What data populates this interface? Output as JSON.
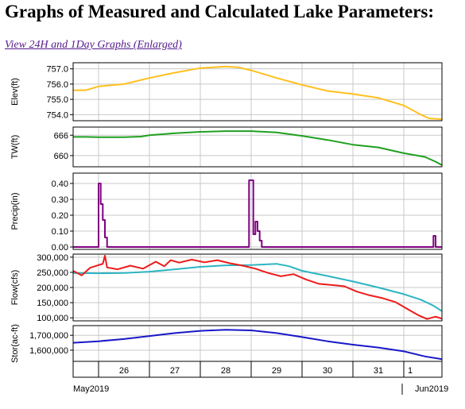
{
  "page": {
    "title": "Graphs of Measured and Calculated Lake Parameters:",
    "link_text": "View 24H and 1Day Graphs (Enlarged)"
  },
  "x_axis": {
    "start": "2019-05-25 12:00",
    "end": "2019-06-01 18:00",
    "day_ticks": [
      "2019-05-26",
      "2019-05-27",
      "2019-05-28",
      "2019-05-29",
      "2019-05-30",
      "2019-05-31",
      "2019-06-01"
    ],
    "day_labels": [
      "26",
      "27",
      "28",
      "29",
      "30",
      "31",
      "1"
    ],
    "month_labels": [
      "May2019",
      "Jun2019"
    ]
  },
  "colors": {
    "elev": "#ffc01e",
    "tw": "#1fa01f",
    "precip": "#7f007f",
    "inflow": "#ee1b1b",
    "outflow": "#2bb5c2",
    "storage": "#1818c8",
    "grid": "#c8c8c8"
  },
  "chart_data": [
    {
      "type": "line",
      "ylabel": "Elev(ft)",
      "ylim": [
        753.6,
        757.4
      ],
      "yticks": [
        754.0,
        755.0,
        756.0,
        757.0
      ],
      "ytick_labels": [
        "754.0",
        "755.0",
        "756.0",
        "757.0"
      ],
      "grid": true,
      "series": [
        {
          "color_key": "elev",
          "points": [
            [
              "2019-05-25 12:00",
              755.6
            ],
            [
              "2019-05-25 18:00",
              755.6
            ],
            [
              "2019-05-26 00:00",
              755.85
            ],
            [
              "2019-05-26 12:00",
              756.0
            ],
            [
              "2019-05-27 00:00",
              756.4
            ],
            [
              "2019-05-27 12:00",
              756.75
            ],
            [
              "2019-05-28 00:00",
              757.05
            ],
            [
              "2019-05-28 12:00",
              757.15
            ],
            [
              "2019-05-28 18:00",
              757.1
            ],
            [
              "2019-05-29 00:00",
              756.9
            ],
            [
              "2019-05-29 12:00",
              756.4
            ],
            [
              "2019-05-30 00:00",
              755.95
            ],
            [
              "2019-05-30 12:00",
              755.55
            ],
            [
              "2019-05-31 00:00",
              755.35
            ],
            [
              "2019-05-31 12:00",
              755.1
            ],
            [
              "2019-06-01 00:00",
              754.6
            ],
            [
              "2019-06-01 08:00",
              754.0
            ],
            [
              "2019-06-01 12:00",
              753.75
            ],
            [
              "2019-06-01 18:00",
              753.7
            ]
          ]
        }
      ]
    },
    {
      "type": "line",
      "ylabel": "TW(ft)",
      "ylim": [
        656.7,
        668.4
      ],
      "yticks": [
        660,
        666
      ],
      "ytick_labels": [
        "660",
        "666"
      ],
      "grid": true,
      "series": [
        {
          "color_key": "tw",
          "points": [
            [
              "2019-05-25 12:00",
              665.5
            ],
            [
              "2019-05-25 18:00",
              665.5
            ],
            [
              "2019-05-26 00:00",
              665.4
            ],
            [
              "2019-05-26 12:00",
              665.4
            ],
            [
              "2019-05-26 20:00",
              665.6
            ],
            [
              "2019-05-27 00:00",
              666.0
            ],
            [
              "2019-05-27 12:00",
              666.6
            ],
            [
              "2019-05-28 00:00",
              667.0
            ],
            [
              "2019-05-28 12:00",
              667.2
            ],
            [
              "2019-05-29 00:00",
              667.2
            ],
            [
              "2019-05-29 12:00",
              666.8
            ],
            [
              "2019-05-30 00:00",
              665.8
            ],
            [
              "2019-05-30 12:00",
              664.6
            ],
            [
              "2019-05-31 00:00",
              663.2
            ],
            [
              "2019-05-31 12:00",
              662.4
            ],
            [
              "2019-06-01 00:00",
              660.7
            ],
            [
              "2019-06-01 10:00",
              659.6
            ],
            [
              "2019-06-01 15:00",
              658.2
            ],
            [
              "2019-06-01 18:00",
              657.2
            ]
          ]
        }
      ]
    },
    {
      "type": "line",
      "ylabel": "Precip(in)",
      "ylim": [
        -0.015,
        0.465
      ],
      "yticks": [
        0.0,
        0.1,
        0.2,
        0.3,
        0.4
      ],
      "ytick_labels": [
        "0.00",
        "0.10",
        "0.20",
        "0.30",
        "0.40"
      ],
      "grid": true,
      "series": [
        {
          "color_key": "precip",
          "step": true,
          "points": [
            [
              "2019-05-25 12:00",
              0
            ],
            [
              "2019-05-26 00:00",
              0
            ],
            [
              "2019-05-26 00:00",
              0.4
            ],
            [
              "2019-05-26 01:00",
              0.4
            ],
            [
              "2019-05-26 01:00",
              0.27
            ],
            [
              "2019-05-26 02:00",
              0.27
            ],
            [
              "2019-05-26 02:00",
              0.17
            ],
            [
              "2019-05-26 03:00",
              0.17
            ],
            [
              "2019-05-26 03:00",
              0.06
            ],
            [
              "2019-05-26 04:00",
              0.06
            ],
            [
              "2019-05-26 04:00",
              0
            ],
            [
              "2019-05-28 23:00",
              0
            ],
            [
              "2019-05-28 23:00",
              0.42
            ],
            [
              "2019-05-29 01:00",
              0.42
            ],
            [
              "2019-05-29 01:00",
              0.08
            ],
            [
              "2019-05-29 02:00",
              0.08
            ],
            [
              "2019-05-29 02:00",
              0.16
            ],
            [
              "2019-05-29 03:00",
              0.16
            ],
            [
              "2019-05-29 03:00",
              0.1
            ],
            [
              "2019-05-29 04:00",
              0.1
            ],
            [
              "2019-05-29 04:00",
              0.04
            ],
            [
              "2019-05-29 05:00",
              0.04
            ],
            [
              "2019-05-29 05:00",
              0
            ],
            [
              "2019-06-01 14:00",
              0
            ],
            [
              "2019-06-01 14:00",
              0.07
            ],
            [
              "2019-06-01 15:00",
              0.07
            ],
            [
              "2019-06-01 15:00",
              0
            ],
            [
              "2019-06-01 18:00",
              0
            ]
          ]
        }
      ]
    },
    {
      "type": "line",
      "ylabel": "Flow(cfs)",
      "ylim": [
        90000,
        310000
      ],
      "yticks": [
        100000,
        150000,
        200000,
        250000,
        300000
      ],
      "ytick_labels": [
        "100,000",
        "150,000",
        "200,000",
        "250,000",
        "300,000"
      ],
      "grid": true,
      "series": [
        {
          "color_key": "outflow",
          "points": [
            [
              "2019-05-25 12:00",
              248000
            ],
            [
              "2019-05-26 00:00",
              247000
            ],
            [
              "2019-05-26 12:00",
              248000
            ],
            [
              "2019-05-27 00:00",
              252000
            ],
            [
              "2019-05-27 12:00",
              260000
            ],
            [
              "2019-05-28 00:00",
              268000
            ],
            [
              "2019-05-28 12:00",
              273000
            ],
            [
              "2019-05-29 00:00",
              274000
            ],
            [
              "2019-05-29 12:00",
              278000
            ],
            [
              "2019-05-29 18:00",
              270000
            ],
            [
              "2019-05-30 00:00",
              255000
            ],
            [
              "2019-05-30 12:00",
              238000
            ],
            [
              "2019-05-31 00:00",
              220000
            ],
            [
              "2019-05-31 12:00",
              200000
            ],
            [
              "2019-06-01 00:00",
              178000
            ],
            [
              "2019-06-01 08:00",
              160000
            ],
            [
              "2019-06-01 14:00",
              140000
            ],
            [
              "2019-06-01 18:00",
              122000
            ]
          ]
        },
        {
          "color_key": "inflow",
          "points": [
            [
              "2019-05-25 12:00",
              255000
            ],
            [
              "2019-05-25 16:00",
              240000
            ],
            [
              "2019-05-25 20:00",
              265000
            ],
            [
              "2019-05-26 02:00",
              278000
            ],
            [
              "2019-05-26 03:00",
              305000
            ],
            [
              "2019-05-26 04:00",
              266000
            ],
            [
              "2019-05-26 09:00",
              260000
            ],
            [
              "2019-05-26 15:00",
              272000
            ],
            [
              "2019-05-26 21:00",
              262000
            ],
            [
              "2019-05-27 03:00",
              285000
            ],
            [
              "2019-05-27 07:00",
              270000
            ],
            [
              "2019-05-27 10:00",
              290000
            ],
            [
              "2019-05-27 14:00",
              282000
            ],
            [
              "2019-05-27 20:00",
              292000
            ],
            [
              "2019-05-28 02:00",
              283000
            ],
            [
              "2019-05-28 08:00",
              290000
            ],
            [
              "2019-05-28 14:00",
              280000
            ],
            [
              "2019-05-28 20:00",
              272000
            ],
            [
              "2019-05-29 02:00",
              262000
            ],
            [
              "2019-05-29 08:00",
              248000
            ],
            [
              "2019-05-29 14:00",
              237000
            ],
            [
              "2019-05-29 20:00",
              244000
            ],
            [
              "2019-05-30 02:00",
              226000
            ],
            [
              "2019-05-30 08:00",
              212000
            ],
            [
              "2019-05-30 14:00",
              208000
            ],
            [
              "2019-05-30 20:00",
              204000
            ],
            [
              "2019-05-31 02:00",
              186000
            ],
            [
              "2019-05-31 08:00",
              174000
            ],
            [
              "2019-05-31 14:00",
              165000
            ],
            [
              "2019-05-31 20:00",
              152000
            ],
            [
              "2019-06-01 02:00",
              128000
            ],
            [
              "2019-06-01 07:00",
              108000
            ],
            [
              "2019-06-01 11:00",
              96000
            ],
            [
              "2019-06-01 15:00",
              104000
            ],
            [
              "2019-06-01 18:00",
              97000
            ]
          ]
        }
      ]
    },
    {
      "type": "line",
      "ylabel": "Stor(ac-ft)",
      "ylim": [
        1525000,
        1765000
      ],
      "yticks": [
        1600000,
        1700000
      ],
      "ytick_labels": [
        "1,600,000",
        "1,700,000"
      ],
      "grid": true,
      "series": [
        {
          "color_key": "storage",
          "points": [
            [
              "2019-05-25 12:00",
              1650000
            ],
            [
              "2019-05-26 00:00",
              1660000
            ],
            [
              "2019-05-26 12:00",
              1675000
            ],
            [
              "2019-05-27 00:00",
              1695000
            ],
            [
              "2019-05-27 12:00",
              1715000
            ],
            [
              "2019-05-28 00:00",
              1730000
            ],
            [
              "2019-05-28 12:00",
              1737000
            ],
            [
              "2019-05-29 00:00",
              1733000
            ],
            [
              "2019-05-29 12:00",
              1715000
            ],
            [
              "2019-05-30 00:00",
              1688000
            ],
            [
              "2019-05-30 12:00",
              1660000
            ],
            [
              "2019-05-31 00:00",
              1637000
            ],
            [
              "2019-05-31 12:00",
              1618000
            ],
            [
              "2019-06-01 00:00",
              1592000
            ],
            [
              "2019-06-01 10:00",
              1558000
            ],
            [
              "2019-06-01 18:00",
              1540000
            ]
          ]
        }
      ]
    }
  ]
}
